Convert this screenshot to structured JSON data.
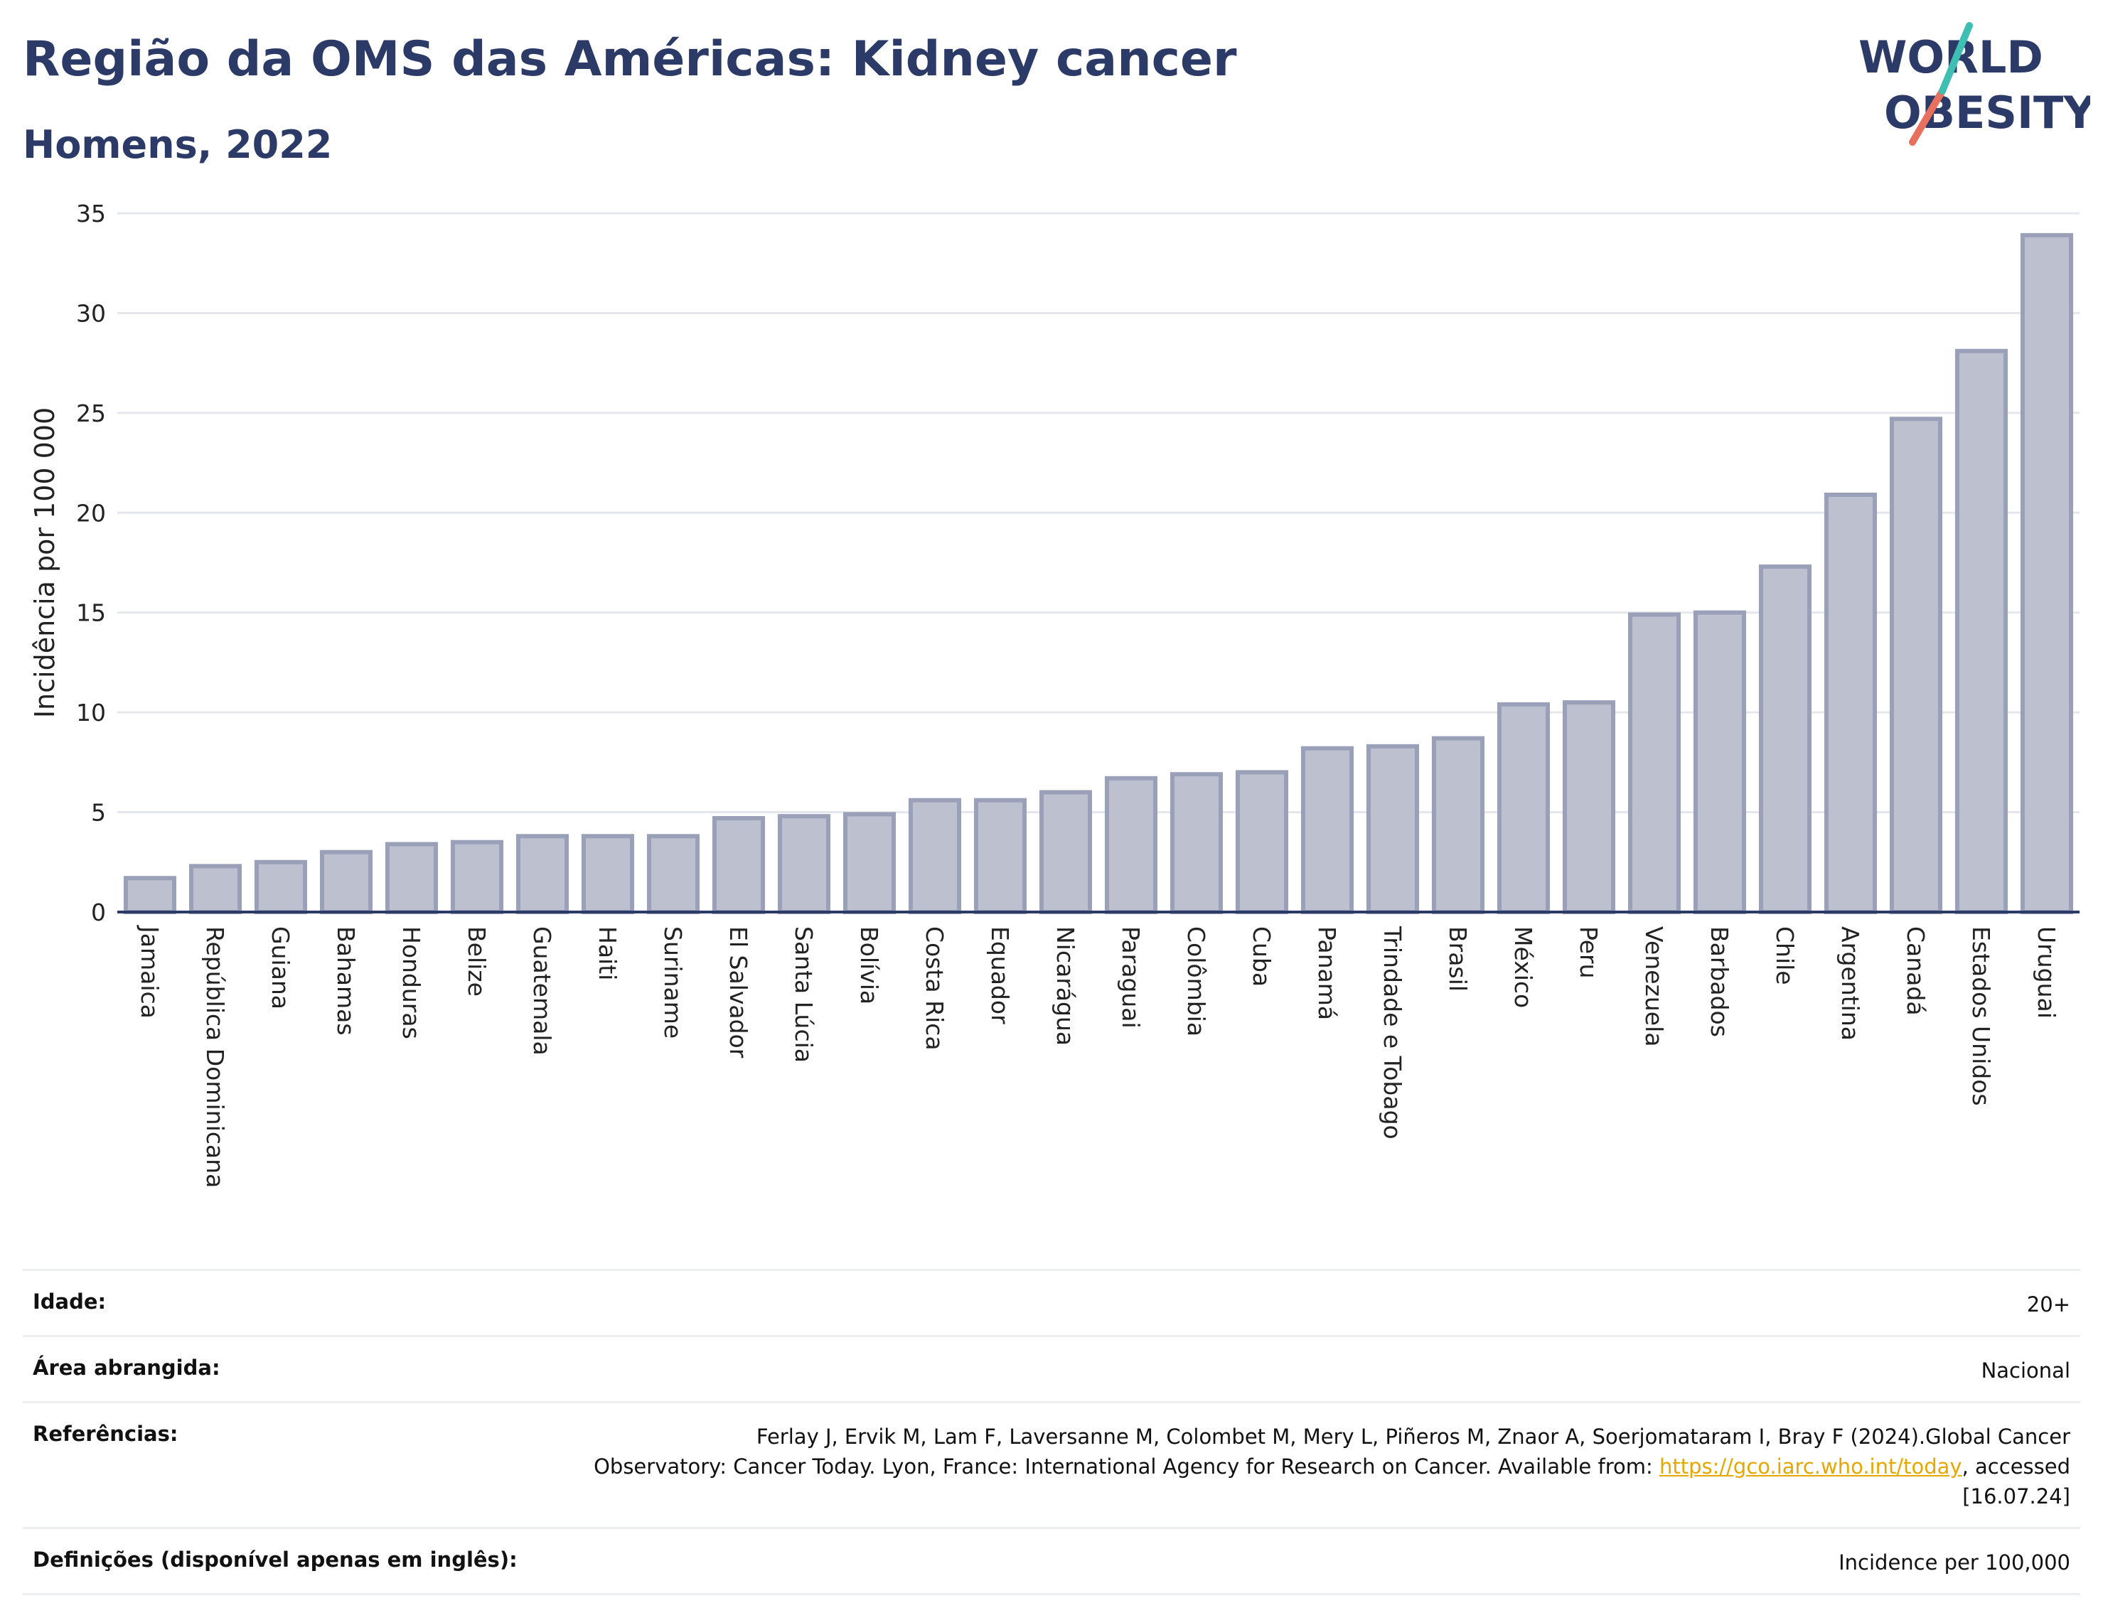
{
  "header": {
    "title": "Região da OMS das Américas: Kidney cancer",
    "subtitle": "Homens, 2022"
  },
  "logo": {
    "line1": "WORLD",
    "line2": "OBESITY"
  },
  "colors": {
    "bar_fill": "#bcc0cf",
    "bar_stroke": "#9aa0b8",
    "title": "#2b3a67",
    "grid": "#e6e7ec",
    "logo_teal": "#3fbfb3",
    "logo_red": "#e8705f",
    "link": "#e6a800"
  },
  "chart_data": {
    "type": "bar",
    "title": "",
    "xlabel": "",
    "ylabel": "Incidência por 100 000",
    "ylim": [
      0,
      35
    ],
    "yticks": [
      0,
      5,
      10,
      15,
      20,
      25,
      30,
      35
    ],
    "grid": true,
    "categories": [
      "Jamaica",
      "República Dominicana",
      "Guiana",
      "Bahamas",
      "Honduras",
      "Belize",
      "Guatemala",
      "Haiti",
      "Suriname",
      "El Salvador",
      "Santa Lúcia",
      "Bolívia",
      "Costa Rica",
      "Equador",
      "Nicarágua",
      "Paraguai",
      "Colômbia",
      "Cuba",
      "Panamá",
      "Trindade e Tobago",
      "Brasil",
      "México",
      "Peru",
      "Venezuela",
      "Barbados",
      "Chile",
      "Argentina",
      "Canadá",
      "Estados Unidos",
      "Uruguai"
    ],
    "values": [
      1.7,
      2.3,
      2.5,
      3.0,
      3.4,
      3.5,
      3.8,
      3.8,
      3.8,
      4.7,
      4.8,
      4.9,
      5.6,
      5.6,
      6.0,
      6.7,
      6.9,
      7.0,
      8.2,
      8.3,
      8.7,
      10.4,
      10.5,
      14.9,
      15.0,
      17.3,
      20.9,
      24.7,
      28.1,
      33.9
    ]
  },
  "info": {
    "age": {
      "label": "Idade:",
      "value": "20+"
    },
    "area": {
      "label": "Área abrangida:",
      "value": "Nacional"
    },
    "refs": {
      "label": "Referências:",
      "text_line1": "Ferlay J, Ervik M, Lam F, Laversanne M, Colombet M, Mery L, Piñeros M, Znaor A, Soerjomataram I, Bray F (2024).Global Cancer",
      "text_line2": "Observatory: Cancer Today. Lyon, France: International Agency for Research on Cancer. Available from:",
      "link": "https://gco.iarc.who.int/today",
      "text_line3": ", accessed [16.07.24]"
    },
    "definitions": {
      "label": "Definições (disponível apenas em inglês):",
      "value": "Incidence per 100,000"
    }
  }
}
